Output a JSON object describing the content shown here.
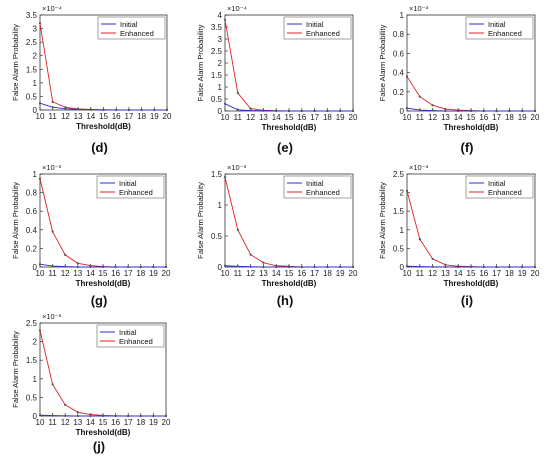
{
  "colors": {
    "initial": "#2b2bd6",
    "enhanced": "#e02020",
    "marker": "#555555",
    "axis": "#333333"
  },
  "chart_data": [
    {
      "type": "line",
      "panel_label": "(d)",
      "x": [
        10,
        11,
        12,
        13,
        14,
        15,
        16,
        17,
        18,
        19,
        20
      ],
      "x_ticks": [
        "10",
        "11",
        "12",
        "13",
        "14",
        "15",
        "16",
        "17",
        "18",
        "19",
        "20"
      ],
      "xlabel": "Threshold(dB)",
      "ylabel": "False Alarm Probability",
      "exponent_label": "×10⁻⁴",
      "y_ticks": [
        "0",
        "0.5",
        "1",
        "1.5",
        "2",
        "2.5",
        "3",
        "3.5"
      ],
      "ylim": [
        0,
        3.5
      ],
      "legend": "top-right",
      "series": [
        {
          "name": "Initial",
          "values": [
            0.25,
            0.1,
            0.05,
            0.02,
            0.01,
            0,
            0,
            0,
            0,
            0,
            0
          ]
        },
        {
          "name": "Enhanced",
          "values": [
            3.2,
            0.3,
            0.1,
            0.04,
            0.02,
            0.01,
            0,
            0,
            0,
            0,
            0
          ]
        }
      ]
    },
    {
      "type": "line",
      "panel_label": "(e)",
      "x": [
        10,
        11,
        12,
        13,
        14,
        15,
        16,
        17,
        18,
        19,
        20
      ],
      "x_ticks": [
        "10",
        "11",
        "12",
        "13",
        "14",
        "15",
        "16",
        "17",
        "18",
        "19",
        "20"
      ],
      "xlabel": "Threshold(dB)",
      "ylabel": "False Alarm Probability",
      "exponent_label": "×10⁻⁴",
      "y_ticks": [
        "0",
        "0.5",
        "1",
        "1.5",
        "2",
        "2.5",
        "3",
        "3.5",
        "4"
      ],
      "ylim": [
        0,
        4
      ],
      "legend": "top-right",
      "series": [
        {
          "name": "Initial",
          "values": [
            0.3,
            0.05,
            0.02,
            0.01,
            0,
            0,
            0,
            0,
            0,
            0,
            0
          ]
        },
        {
          "name": "Enhanced",
          "values": [
            3.8,
            0.75,
            0.1,
            0.03,
            0.01,
            0,
            0,
            0,
            0,
            0,
            0
          ]
        }
      ]
    },
    {
      "type": "line",
      "panel_label": "(f)",
      "x": [
        10,
        11,
        12,
        13,
        14,
        15,
        16,
        17,
        18,
        19,
        20
      ],
      "x_ticks": [
        "10",
        "11",
        "12",
        "13",
        "14",
        "15",
        "16",
        "17",
        "18",
        "19",
        "20"
      ],
      "xlabel": "Threshold(dB)",
      "ylabel": "False Alarm Probability",
      "exponent_label": "×10⁻³",
      "y_ticks": [
        "0",
        "0.2",
        "0.4",
        "0.6",
        "0.8",
        "1"
      ],
      "ylim": [
        0,
        1
      ],
      "legend": "top-right",
      "series": [
        {
          "name": "Initial",
          "values": [
            0.03,
            0.01,
            0.005,
            0,
            0,
            0,
            0,
            0,
            0,
            0,
            0
          ]
        },
        {
          "name": "Enhanced",
          "values": [
            0.36,
            0.15,
            0.06,
            0.02,
            0.01,
            0.005,
            0,
            0,
            0,
            0,
            0
          ]
        }
      ]
    },
    {
      "type": "line",
      "panel_label": "(g)",
      "x": [
        10,
        11,
        12,
        13,
        14,
        15,
        16,
        17,
        18,
        19,
        20
      ],
      "x_ticks": [
        "10",
        "11",
        "12",
        "13",
        "14",
        "15",
        "16",
        "17",
        "18",
        "19",
        "20"
      ],
      "xlabel": "Threshold(dB)",
      "ylabel": "False Alarm Probability",
      "exponent_label": "×10⁻³",
      "y_ticks": [
        "0",
        "0.2",
        "0.4",
        "0.6",
        "0.8",
        "1"
      ],
      "ylim": [
        0,
        1
      ],
      "legend": "top-right",
      "series": [
        {
          "name": "Initial",
          "values": [
            0.03,
            0.01,
            0.005,
            0,
            0,
            0,
            0,
            0,
            0,
            0,
            0
          ]
        },
        {
          "name": "Enhanced",
          "values": [
            0.95,
            0.38,
            0.13,
            0.04,
            0.015,
            0.005,
            0,
            0,
            0,
            0,
            0
          ]
        }
      ]
    },
    {
      "type": "line",
      "panel_label": "(h)",
      "x": [
        10,
        11,
        12,
        13,
        14,
        15,
        16,
        17,
        18,
        19,
        20
      ],
      "x_ticks": [
        "10",
        "11",
        "12",
        "13",
        "14",
        "15",
        "16",
        "17",
        "18",
        "19",
        "20"
      ],
      "xlabel": "Threshold(dB)",
      "ylabel": "False Alarm Probability",
      "exponent_label": "×10⁻³",
      "y_ticks": [
        "0",
        "0.5",
        "1",
        "1.5"
      ],
      "ylim": [
        0,
        1.5
      ],
      "legend": "top-right",
      "series": [
        {
          "name": "Initial",
          "values": [
            0.02,
            0.01,
            0.005,
            0,
            0,
            0,
            0,
            0,
            0,
            0,
            0
          ]
        },
        {
          "name": "Enhanced",
          "values": [
            1.45,
            0.6,
            0.2,
            0.07,
            0.02,
            0.01,
            0,
            0,
            0,
            0,
            0
          ]
        }
      ]
    },
    {
      "type": "line",
      "panel_label": "(i)",
      "x": [
        10,
        11,
        12,
        13,
        14,
        15,
        16,
        17,
        18,
        19,
        20
      ],
      "x_ticks": [
        "10",
        "11",
        "12",
        "13",
        "14",
        "15",
        "16",
        "17",
        "18",
        "19",
        "20"
      ],
      "xlabel": "Threshold(dB)",
      "ylabel": "False Alarm Probability",
      "exponent_label": "×10⁻³",
      "y_ticks": [
        "0",
        "0.5",
        "1",
        "1.5",
        "2",
        "2.5"
      ],
      "ylim": [
        0,
        2.5
      ],
      "legend": "top-right",
      "series": [
        {
          "name": "Initial",
          "values": [
            0.02,
            0.01,
            0.005,
            0,
            0,
            0,
            0,
            0,
            0,
            0,
            0
          ]
        },
        {
          "name": "Enhanced",
          "values": [
            2.05,
            0.75,
            0.22,
            0.06,
            0.02,
            0.01,
            0,
            0,
            0,
            0,
            0
          ]
        }
      ]
    },
    {
      "type": "line",
      "panel_label": "(j)",
      "x": [
        10,
        11,
        12,
        13,
        14,
        15,
        16,
        17,
        18,
        19,
        20
      ],
      "x_ticks": [
        "10",
        "11",
        "12",
        "13",
        "14",
        "15",
        "16",
        "17",
        "18",
        "19",
        "20"
      ],
      "xlabel": "Threshold(dB)",
      "ylabel": "False Alarm Probability",
      "exponent_label": "×10⁻³",
      "y_ticks": [
        "0",
        "0.5",
        "1",
        "1.5",
        "2",
        "2.5"
      ],
      "ylim": [
        0,
        2.5
      ],
      "legend": "top-right",
      "series": [
        {
          "name": "Initial",
          "values": [
            0.02,
            0.01,
            0.005,
            0,
            0,
            0,
            0,
            0,
            0,
            0,
            0
          ]
        },
        {
          "name": "Enhanced",
          "values": [
            2.3,
            0.85,
            0.3,
            0.1,
            0.04,
            0.015,
            0.005,
            0,
            0,
            0,
            0
          ]
        }
      ]
    }
  ]
}
